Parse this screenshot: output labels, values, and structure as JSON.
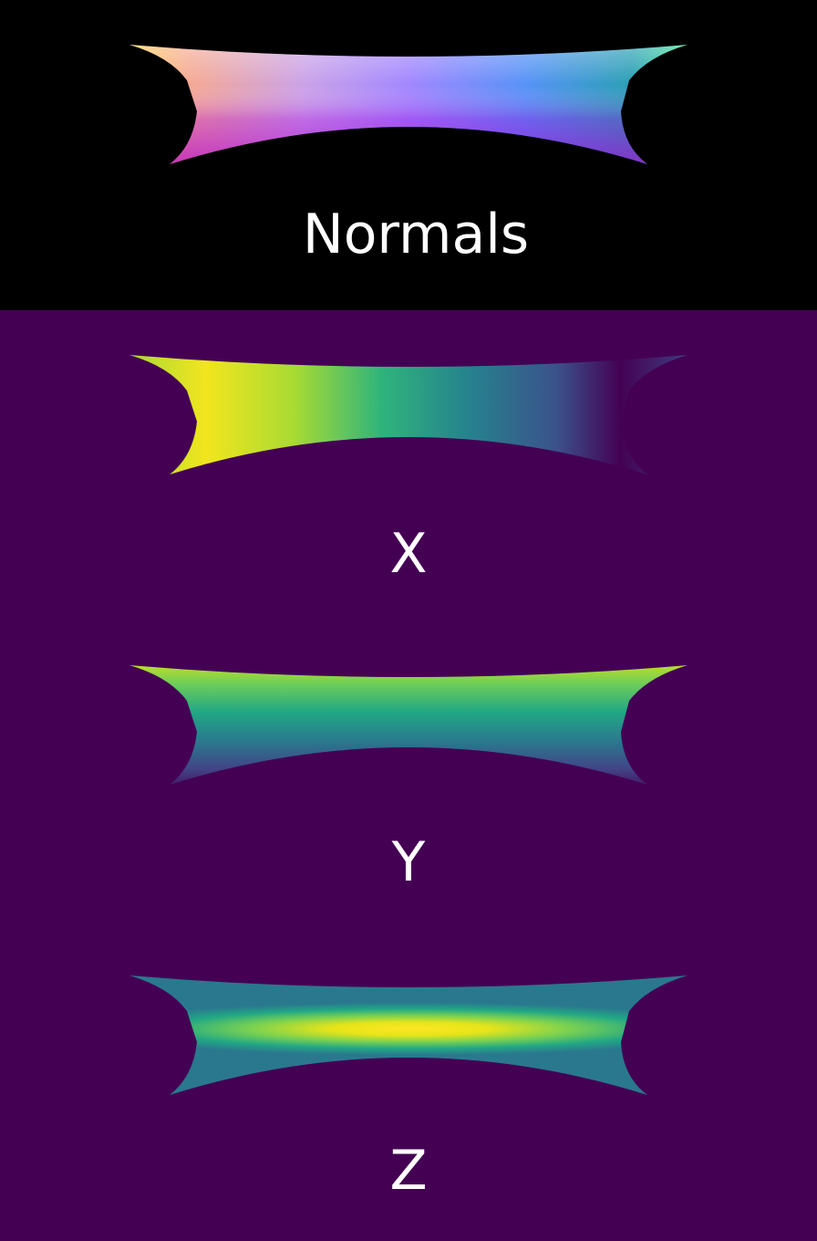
{
  "panels": [
    {
      "caption": "Normals",
      "background": "#000000",
      "colormap": "normal-rgb"
    },
    {
      "caption": "X",
      "background": "#440154",
      "colormap": "viridis"
    },
    {
      "caption": "Y",
      "background": "#440154",
      "colormap": "viridis"
    },
    {
      "caption": "Z",
      "background": "#440154",
      "colormap": "viridis"
    }
  ],
  "colors": {
    "viridis_low": "#440154",
    "viridis_mid": "#21918c",
    "viridis_high": "#fde725",
    "caption_text": "#ffffff"
  }
}
